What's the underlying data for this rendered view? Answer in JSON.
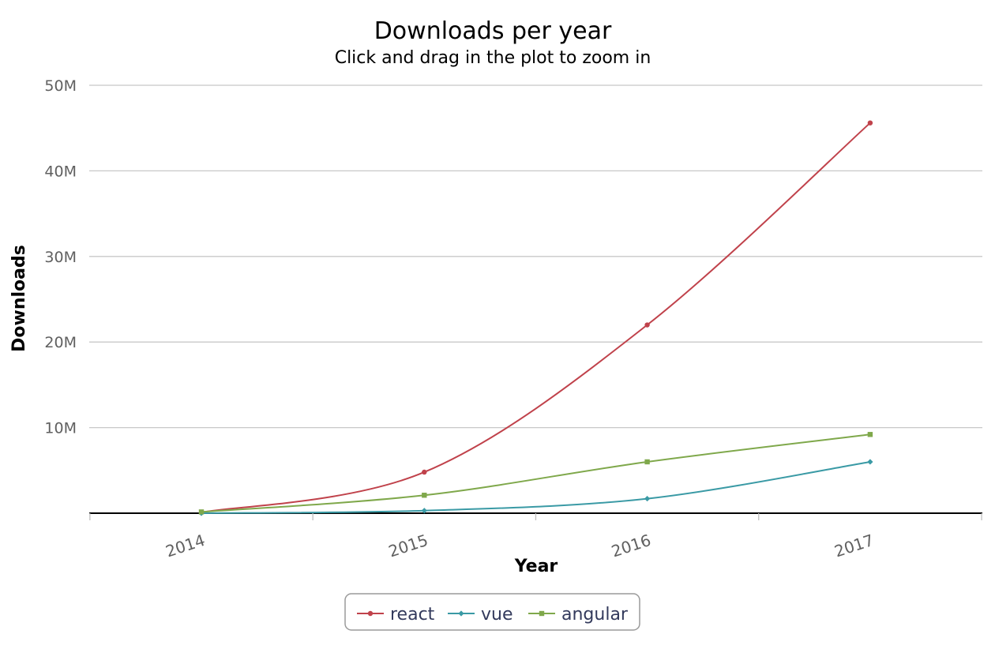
{
  "chart_data": {
    "type": "line",
    "title": "Downloads per year",
    "subtitle": "Click and drag in the plot to zoom in",
    "xlabel": "Year",
    "ylabel": "Downloads",
    "categories": [
      "2014",
      "2015",
      "2016",
      "2017"
    ],
    "x": [
      2014,
      2015,
      2016,
      2017
    ],
    "ylim": [
      0,
      50000000
    ],
    "yticks": [
      {
        "value": 10000000,
        "label": "10M"
      },
      {
        "value": 20000000,
        "label": "20M"
      },
      {
        "value": 30000000,
        "label": "30M"
      },
      {
        "value": 40000000,
        "label": "40M"
      },
      {
        "value": 50000000,
        "label": "50M"
      }
    ],
    "grid": true,
    "legend_position": "bottom-center",
    "series": [
      {
        "name": "react",
        "color": "#c0424b",
        "marker": "circle",
        "values": [
          100000,
          4800000,
          22000000,
          45600000
        ]
      },
      {
        "name": "vue",
        "color": "#3a9aa5",
        "marker": "diamond",
        "values": [
          0,
          300000,
          1700000,
          6000000
        ]
      },
      {
        "name": "angular",
        "color": "#7fa84b",
        "marker": "square",
        "values": [
          150000,
          2100000,
          6000000,
          9200000
        ]
      }
    ]
  }
}
